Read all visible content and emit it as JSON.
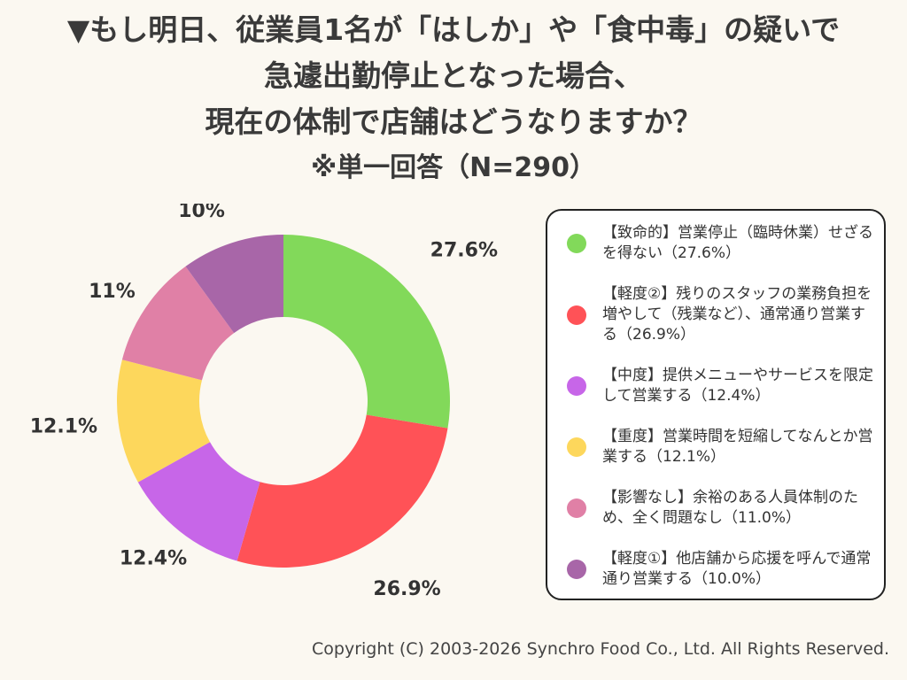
{
  "title": {
    "line1": "▼もし明日、従業員1名が「はしか」や「食中毒」の疑いで",
    "line2": "急遽出勤停止となった場合、",
    "line3": "現在の体制で店舗はどうなりますか？",
    "subtitle": "※単一回答（N=290）"
  },
  "chart_data": {
    "type": "pie",
    "donut": true,
    "n": 290,
    "legend_position": "right",
    "slices": [
      {
        "name": "【致命的】営業停止（臨時休業）せざるを得ない（27.6%）",
        "value": 27.6,
        "label": "27.6%",
        "color": "#82d95a"
      },
      {
        "name": "【軽度②】残りのスタッフの業務負担を増やして（残業など）、通常通り営業する（26.9%）",
        "value": 26.9,
        "label": "26.9%",
        "color": "#ff5257"
      },
      {
        "name": "【中度】提供メニューやサービスを限定して営業する（12.4%）",
        "value": 12.4,
        "label": "12.4%",
        "color": "#c766e8"
      },
      {
        "name": "【重度】営業時間を短縮してなんとか営業する（12.1%）",
        "value": 12.1,
        "label": "12.1%",
        "color": "#fdd75c"
      },
      {
        "name": "【影響なし】余裕のある人員体制のため、全く問題なし（11.0%）",
        "value": 11.0,
        "label": "11%",
        "color": "#e080a6"
      },
      {
        "name": "【軽度①】他店舗から応援を呼んで通常通り営業する（10.0%）",
        "value": 10.0,
        "label": "10%",
        "color": "#a866a8"
      }
    ]
  },
  "footer": {
    "copyright": "Copyright (C) 2003-2026  Synchro Food Co., Ltd. All Rights Reserved."
  }
}
